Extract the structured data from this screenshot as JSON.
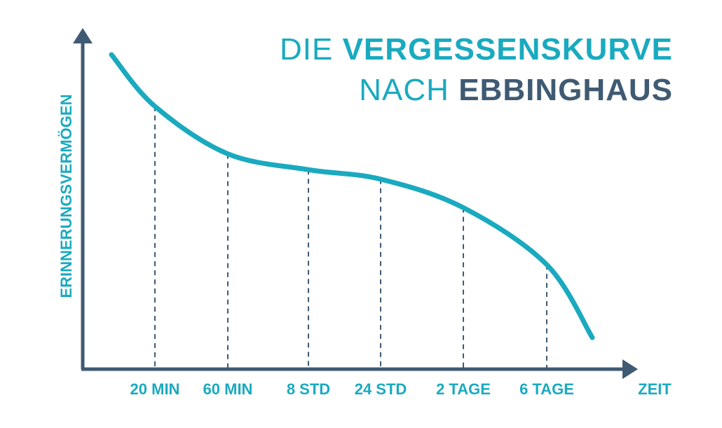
{
  "colors": {
    "accent": "#1aaabf",
    "axis": "#3f5a73",
    "dash": "#3f5a73"
  },
  "title": {
    "line1_thin": "DIE",
    "line1_bold": "VERGESSENSKURVE",
    "line2_thin": "NACH",
    "line2_bold": "EBBINGHAUS"
  },
  "chart_data": {
    "type": "line",
    "xlabel": "ZEIT",
    "ylabel": "ERINNERUNGSVERMÖGEN",
    "categories": [
      "20 MIN",
      "60 MIN",
      "8 STD",
      "24 STD",
      "2 TAGE",
      "6 TAGE"
    ],
    "series": [
      {
        "values": [
          0.83,
          0.68,
          0.63,
          0.6,
          0.51,
          0.33
        ]
      }
    ],
    "ylim": [
      0,
      1
    ],
    "grid": false
  }
}
